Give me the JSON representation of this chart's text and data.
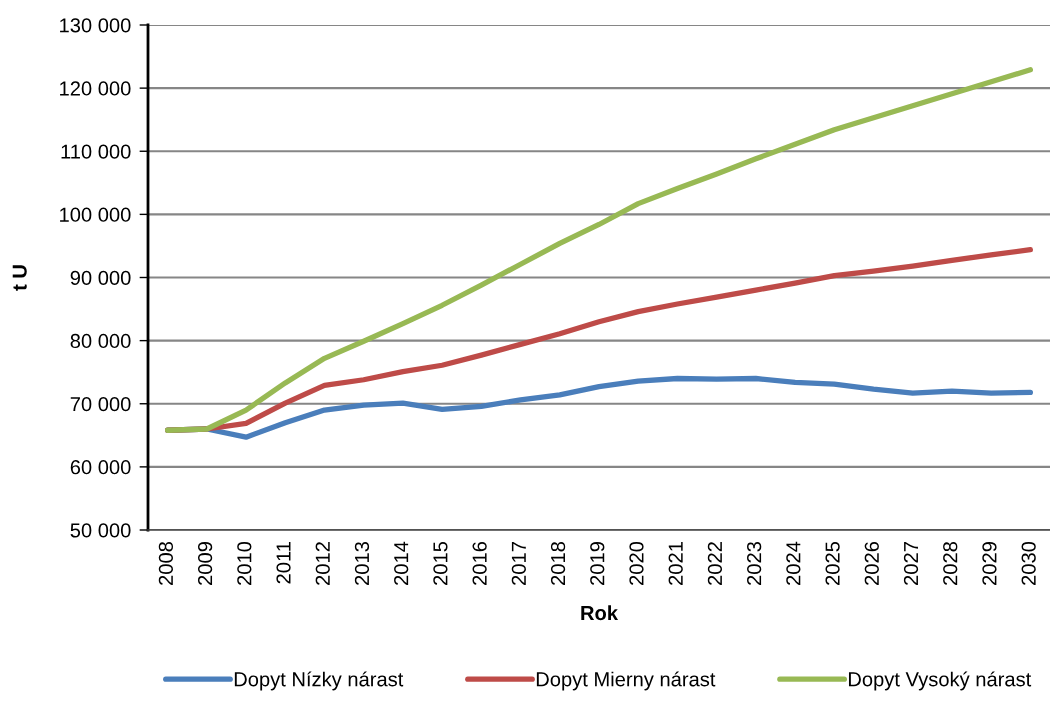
{
  "chart_data": {
    "type": "line",
    "xlabel": "Rok",
    "ylabel": "t U",
    "categories": [
      "2008",
      "2009",
      "2010",
      "2011",
      "2012",
      "2013",
      "2014",
      "2015",
      "2016",
      "2017",
      "2018",
      "2019",
      "2020",
      "2021",
      "2022",
      "2023",
      "2024",
      "2025",
      "2026",
      "2027",
      "2028",
      "2029",
      "2030"
    ],
    "ylim": [
      50000,
      130000
    ],
    "yticks": [
      {
        "value": 50000,
        "label": "50 000"
      },
      {
        "value": 60000,
        "label": "60 000"
      },
      {
        "value": 70000,
        "label": "70 000"
      },
      {
        "value": 80000,
        "label": "80 000"
      },
      {
        "value": 90000,
        "label": "90 000"
      },
      {
        "value": 100000,
        "label": "100 000"
      },
      {
        "value": 110000,
        "label": "110 000"
      },
      {
        "value": 120000,
        "label": "120 000"
      },
      {
        "value": 130000,
        "label": "130 000"
      }
    ],
    "grid": "y",
    "legend": "bottom",
    "marker": "none",
    "line_style": "solid",
    "series": [
      {
        "name": "Dopyt Nízky nárast",
        "color": "#4a7ebb",
        "values": [
          65800,
          66000,
          64700,
          67000,
          69000,
          69800,
          70100,
          69100,
          69600,
          70600,
          71400,
          72700,
          73600,
          74000,
          73900,
          74000,
          73400,
          73100,
          72300,
          71700,
          72000,
          71700,
          71800
        ]
      },
      {
        "name": "Dopyt Mierny nárast",
        "color": "#be4b48",
        "values": [
          65800,
          66000,
          66900,
          70100,
          72900,
          73800,
          75100,
          76100,
          77700,
          79400,
          81100,
          83000,
          84600,
          85800,
          86900,
          88000,
          89100,
          90300,
          91000,
          91800,
          92700,
          93600,
          94400
        ]
      },
      {
        "name": "Dopyt Vysoký nárast",
        "color": "#98b954",
        "values": [
          65800,
          66000,
          69000,
          73300,
          77200,
          79900,
          82700,
          85600,
          88800,
          92100,
          95400,
          98400,
          101700,
          104100,
          106400,
          108800,
          111100,
          113400,
          115300,
          117200,
          119100,
          121000,
          122900
        ]
      }
    ]
  }
}
